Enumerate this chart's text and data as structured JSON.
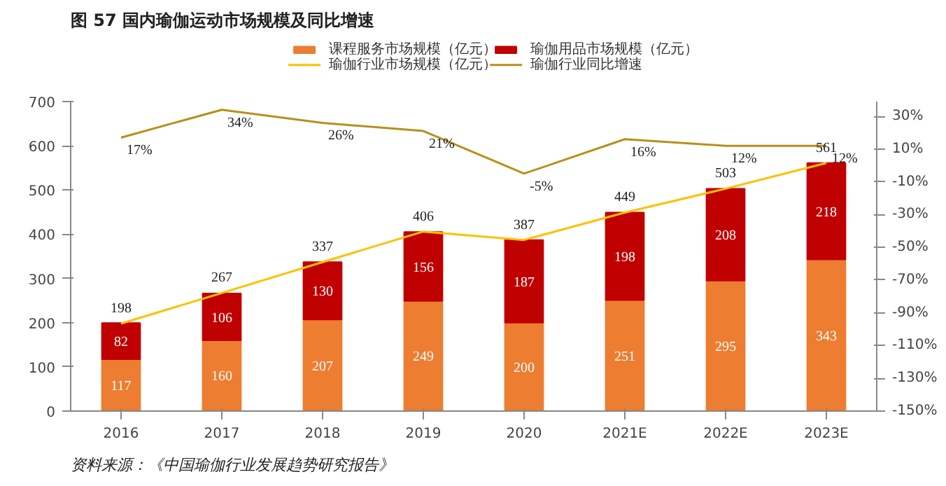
{
  "chart_data": {
    "type": "bar",
    "title": "图 57  国内瑜伽运动市场规模及同比增速",
    "categories": [
      "2016",
      "2017",
      "2018",
      "2019",
      "2020",
      "2021E",
      "2022E",
      "2023E"
    ],
    "stacked": true,
    "data_labels": true,
    "legend": "top",
    "grid": false,
    "ylim": [
      0,
      700
    ],
    "yticks": [
      0,
      100,
      200,
      300,
      400,
      500,
      600,
      700
    ],
    "y2lim": [
      -150,
      39
    ],
    "y2ticks": [
      {
        "value": -150,
        "label": "-150%"
      },
      {
        "value": -130,
        "label": "-130%"
      },
      {
        "value": -110,
        "label": "-110%"
      },
      {
        "value": -90,
        "label": "-90%"
      },
      {
        "value": -70,
        "label": "-70%"
      },
      {
        "value": -50,
        "label": "-50%"
      },
      {
        "value": -30,
        "label": "-30%"
      },
      {
        "value": -10,
        "label": "-10%"
      },
      {
        "value": 10,
        "label": "10%"
      },
      {
        "value": 30,
        "label": "30%"
      }
    ],
    "series": [
      {
        "name": "课程服务市场规模（亿元）",
        "color": "#ed7d31",
        "values": [
          117,
          160,
          207,
          249,
          200,
          251,
          295,
          343
        ]
      },
      {
        "name": "瑜伽用品市场规模（亿元）",
        "color": "#c00000",
        "values": [
          82,
          106,
          130,
          156,
          187,
          198,
          208,
          218
        ]
      },
      {
        "name": "瑜伽行业市场规模（亿元）",
        "type": "line",
        "color": "#ffc000",
        "values": [
          198,
          267,
          337,
          406,
          387,
          449,
          503,
          561
        ]
      },
      {
        "name": "瑜伽行业同比增速",
        "type": "line",
        "axis": "y2",
        "color": "#b8901a",
        "values": [
          17,
          34,
          26,
          21,
          -5,
          16,
          12,
          12
        ],
        "value_labels": [
          "17%",
          "34%",
          "26%",
          "21%",
          "-5%",
          "16%",
          "12%",
          "12%"
        ]
      }
    ],
    "annotations": [
      "资料来源：《中国瑜伽行业发展趋势研究报告》"
    ]
  }
}
